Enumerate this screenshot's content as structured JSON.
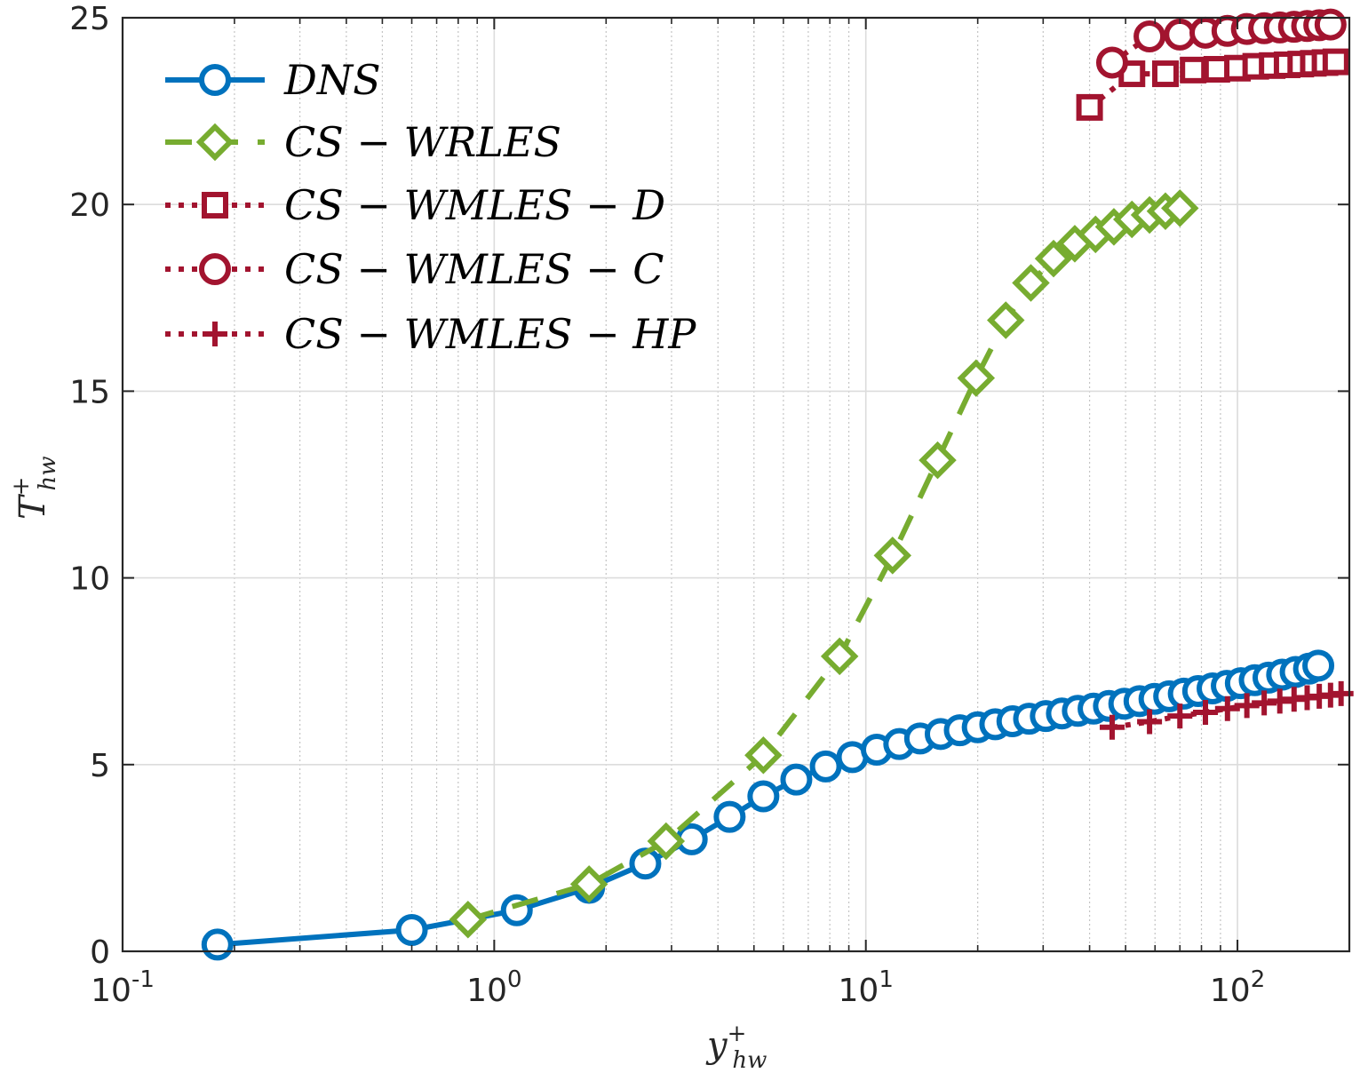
{
  "chart_data": {
    "type": "line",
    "xscale": "log",
    "xlim": [
      0.1,
      200
    ],
    "ylim": [
      0,
      25
    ],
    "xlabel": {
      "base": "y",
      "sup": "+",
      "sub": "hw"
    },
    "ylabel": {
      "base": "T",
      "sup": "+",
      "sub": "hw"
    },
    "grid": true,
    "legend_position": "top-left",
    "x_ticks": [
      {
        "value": 0.1,
        "base": "10",
        "exp": "-1"
      },
      {
        "value": 1,
        "base": "10",
        "exp": "0"
      },
      {
        "value": 10,
        "base": "10",
        "exp": "1"
      },
      {
        "value": 100,
        "base": "10",
        "exp": "2"
      }
    ],
    "y_ticks": [
      {
        "value": 0,
        "label": "0"
      },
      {
        "value": 5,
        "label": "5"
      },
      {
        "value": 10,
        "label": "10"
      },
      {
        "value": 15,
        "label": "15"
      },
      {
        "value": 20,
        "label": "20"
      },
      {
        "value": 25,
        "label": "25"
      }
    ],
    "series": [
      {
        "name": "DNS",
        "color": "#0072BD",
        "line": "solid",
        "marker": "circle",
        "x": [
          0.18,
          0.6,
          1.15,
          1.8,
          2.55,
          3.4,
          4.3,
          5.3,
          6.5,
          7.8,
          9.2,
          10.7,
          12.3,
          14.0,
          15.9,
          17.9,
          20.0,
          22.3,
          24.8,
          27.5,
          30.5,
          33.7,
          37.2,
          41.0,
          45.1,
          49.6,
          54.5,
          59.8,
          65.5,
          71.7,
          78.4,
          85.7,
          93.6,
          102.1,
          111.3,
          121.2,
          131.9,
          143.4,
          155.8,
          165.0
        ],
        "y": [
          0.18,
          0.57,
          1.1,
          1.7,
          2.35,
          3.0,
          3.6,
          4.15,
          4.6,
          4.95,
          5.2,
          5.4,
          5.55,
          5.7,
          5.82,
          5.92,
          6.0,
          6.08,
          6.16,
          6.23,
          6.3,
          6.37,
          6.44,
          6.5,
          6.57,
          6.63,
          6.7,
          6.76,
          6.83,
          6.9,
          6.97,
          7.04,
          7.11,
          7.18,
          7.26,
          7.33,
          7.41,
          7.48,
          7.57,
          7.65
        ]
      },
      {
        "name": "CS-WRLES",
        "color": "#77AC30",
        "line": "dashed",
        "marker": "diamond",
        "x": [
          0.85,
          1.8,
          2.9,
          5.3,
          8.5,
          11.8,
          15.6,
          19.8,
          23.8,
          27.8,
          32.0,
          36.5,
          41.5,
          46.5,
          52.0,
          58.0,
          64.0,
          70.0
        ],
        "y": [
          0.85,
          1.8,
          2.95,
          5.25,
          7.9,
          10.6,
          13.15,
          15.35,
          16.9,
          17.9,
          18.55,
          18.95,
          19.2,
          19.4,
          19.6,
          19.72,
          19.82,
          19.9
        ]
      },
      {
        "name": "CS-WMLES-D",
        "color": "#A2142F",
        "line": "dotted",
        "marker": "square",
        "x": [
          40,
          52,
          64,
          76,
          88,
          100,
          112,
          124,
          136,
          148,
          160,
          172,
          184
        ],
        "y": [
          22.6,
          23.5,
          23.5,
          23.6,
          23.62,
          23.65,
          23.7,
          23.72,
          23.74,
          23.76,
          23.78,
          23.8,
          23.82
        ]
      },
      {
        "name": "CS-WMLES-C",
        "color": "#A2142F",
        "line": "dotted",
        "marker": "circle",
        "x": [
          46,
          58,
          70,
          82,
          94,
          106,
          118,
          130,
          142,
          154,
          166,
          178
        ],
        "y": [
          23.8,
          24.5,
          24.55,
          24.6,
          24.65,
          24.7,
          24.72,
          24.74,
          24.76,
          24.78,
          24.8,
          24.82
        ]
      },
      {
        "name": "CS-WMLES-HP",
        "color": "#A2142F",
        "line": "dotted",
        "marker": "plus",
        "x": [
          46,
          58,
          70,
          82,
          94,
          106,
          118,
          130,
          142,
          154,
          166,
          178,
          190
        ],
        "y": [
          6.0,
          6.15,
          6.3,
          6.4,
          6.5,
          6.58,
          6.65,
          6.7,
          6.75,
          6.79,
          6.83,
          6.86,
          6.9
        ]
      }
    ],
    "legend": [
      {
        "label": "DNS"
      },
      {
        "label": "CS − WRLES"
      },
      {
        "label": "CS − WMLES − D"
      },
      {
        "label": "CS − WMLES − C"
      },
      {
        "label": "CS − WMLES − HP"
      }
    ]
  }
}
